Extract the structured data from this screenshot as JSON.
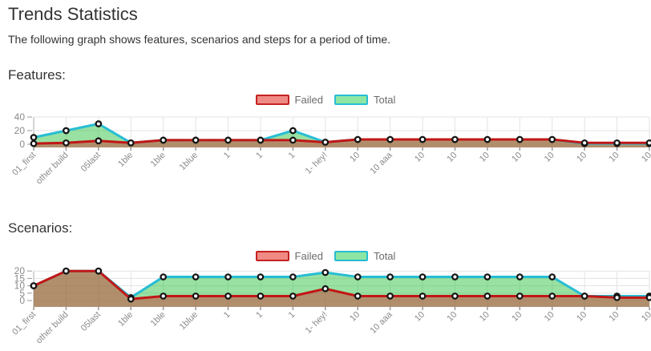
{
  "page": {
    "title": "Trends Statistics",
    "subtitle": "The following graph shows features, scenarios and steps for a period of time."
  },
  "legend": {
    "failed_label": "Failed",
    "total_label": "Total",
    "failed_swatch_fill": "#ef8a84",
    "failed_swatch_border": "#c62222",
    "total_swatch_fill": "#8de6a2",
    "total_swatch_border": "#27bdd4"
  },
  "colors": {
    "grid": "#e3e3e3",
    "axis_line": "#aaaaaa",
    "tick": "#999999",
    "axis_text": "#8a8a8a",
    "point_fill": "#ffffff",
    "point_stroke": "#151515"
  },
  "chart_data": [
    {
      "type": "area",
      "title": "Features:",
      "categories": [
        "01_first",
        "other build",
        "05last",
        "1ble",
        "1ble",
        "1blue",
        "1",
        "1",
        "1",
        "1- hey!",
        "10",
        "10 aaa",
        "10",
        "10",
        "10",
        "10",
        "10",
        "10",
        "10",
        "10"
      ],
      "series": [
        {
          "name": "Total",
          "color": "#27bdd4",
          "fill": "rgba(50,195,70,0.5)",
          "values": [
            10,
            20,
            30,
            2,
            6,
            6,
            6,
            6,
            20,
            3,
            7,
            7,
            7,
            7,
            7,
            7,
            7,
            1,
            1,
            1
          ]
        },
        {
          "name": "Failed",
          "color": "#c21616",
          "fill": "rgba(208,45,45,0.45)",
          "values": [
            1,
            2,
            5,
            2,
            6,
            6,
            6,
            6,
            6,
            3,
            7,
            7,
            7,
            7,
            7,
            7,
            7,
            2,
            2,
            2
          ]
        }
      ],
      "yticks": [
        0,
        20,
        40
      ],
      "ylim": [
        0,
        40
      ],
      "grid": true,
      "legend_position": "top-center"
    },
    {
      "type": "area",
      "title": "Scenarios:",
      "categories": [
        "01_first",
        "other build",
        "05last",
        "1ble",
        "1ble",
        "1blue",
        "1",
        "1",
        "1",
        "1- hey!",
        "10",
        "10 aaa",
        "10",
        "10",
        "10",
        "10",
        "10",
        "10",
        "10",
        "10"
      ],
      "series": [
        {
          "name": "Total",
          "color": "#27bdd4",
          "fill": "rgba(50,195,70,0.5)",
          "values": [
            10,
            20,
            20,
            2,
            16,
            16,
            16,
            16,
            16,
            19,
            16,
            16,
            16,
            16,
            16,
            16,
            16,
            3,
            3,
            3
          ]
        },
        {
          "name": "Failed",
          "color": "#c21616",
          "fill": "rgba(208,45,45,0.45)",
          "values": [
            10,
            20,
            20,
            1,
            3,
            3,
            3,
            3,
            3,
            8,
            3,
            3,
            3,
            3,
            3,
            3,
            3,
            3,
            2,
            2
          ]
        }
      ],
      "yticks": [
        0,
        5,
        10,
        15,
        20
      ],
      "ylim": [
        0,
        20
      ],
      "grid": true,
      "legend_position": "top-center"
    }
  ]
}
